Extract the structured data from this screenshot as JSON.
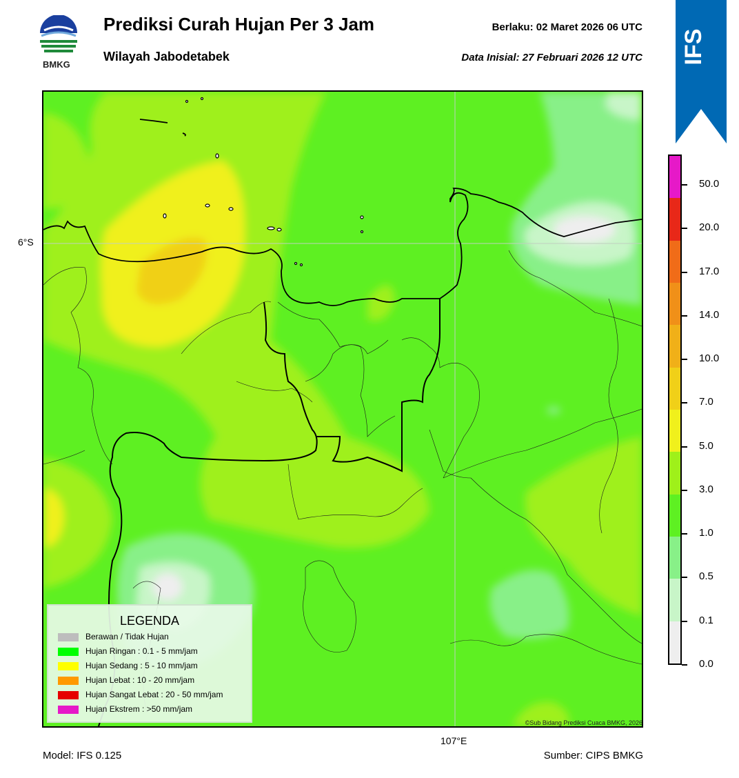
{
  "header": {
    "title": "Prediksi Curah Hujan Per 3 Jam",
    "subtitle": "Wilayah Jabodetabek",
    "valid_label": "Berlaku:  02 Maret 2026 06 UTC",
    "init_label": "Data Inisial:  27 Februari 2026 12 UTC",
    "logo_text": "BMKG"
  },
  "badge": {
    "text": "IFS",
    "color": "#0069b4"
  },
  "map": {
    "lat_label": "6°S",
    "lon_label": "107°E",
    "copyright": "©Sub Bidang Prediksi Cuaca BMKG, 2026"
  },
  "footer": {
    "model": "Model: IFS 0.125",
    "source": "Sumber: CIPS BMKG"
  },
  "legend": {
    "title": "LEGENDA",
    "items": [
      {
        "label": "Berawan / Tidak Hujan",
        "color": "#bdbdbd"
      },
      {
        "label": "Hujan Ringan : 0.1 - 5 mm/jam",
        "color": "#00ff00"
      },
      {
        "label": "Hujan Sedang : 5 - 10 mm/jam",
        "color": "#ffff00"
      },
      {
        "label": "Hujan Lebat : 10 - 20 mm/jam",
        "color": "#ff9900"
      },
      {
        "label": "Hujan Sangat Lebat : 20 - 50 mm/jam",
        "color": "#e60000"
      },
      {
        "label": "Hujan Ekstrem : >50 mm/jam",
        "color": "#e619c8"
      }
    ]
  },
  "colorbar": {
    "ticks": [
      "0.0",
      "0.1",
      "0.5",
      "1.0",
      "3.0",
      "5.0",
      "7.0",
      "10.0",
      "14.0",
      "17.0",
      "20.0",
      "50.0"
    ],
    "colors": [
      "#eeeeee",
      "#c8f5c8",
      "#88f088",
      "#5ef022",
      "#9ff01a",
      "#f0f01c",
      "#f0d018",
      "#f0b018",
      "#f09018",
      "#f06c18",
      "#e82818",
      "#e619c8"
    ]
  }
}
